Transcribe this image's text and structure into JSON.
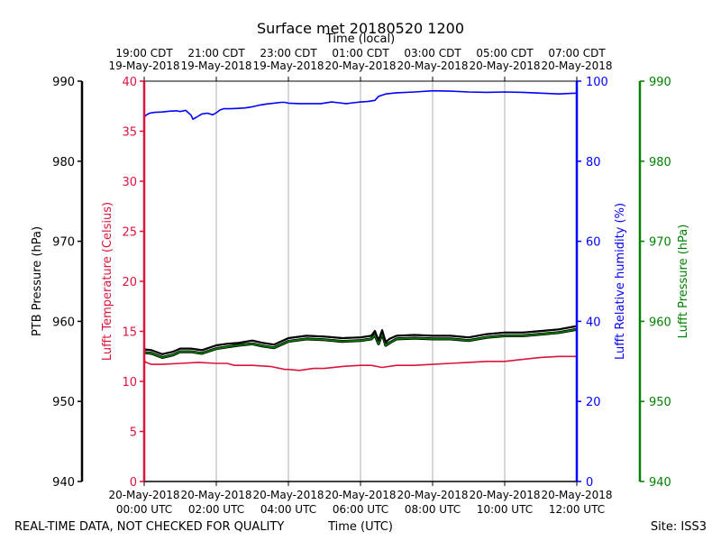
{
  "chart_data": {
    "type": "line",
    "title": "Surface met 20180520 1200",
    "top_axis_label": "Time (local)",
    "bottom_axis_label": "Time (UTC)",
    "footer_left": "REAL-TIME DATA, NOT CHECKED FOR QUALITY",
    "footer_right": "Site: ISS3",
    "x_range_hours": [
      0,
      12
    ],
    "grid": true,
    "bottom_ticks": [
      {
        "hour": 0,
        "line1": "20-May-2018",
        "line2": "00:00 UTC"
      },
      {
        "hour": 2,
        "line1": "20-May-2018",
        "line2": "02:00 UTC"
      },
      {
        "hour": 4,
        "line1": "20-May-2018",
        "line2": "04:00 UTC"
      },
      {
        "hour": 6,
        "line1": "20-May-2018",
        "line2": "06:00 UTC"
      },
      {
        "hour": 8,
        "line1": "20-May-2018",
        "line2": "08:00 UTC"
      },
      {
        "hour": 10,
        "line1": "20-May-2018",
        "line2": "10:00 UTC"
      },
      {
        "hour": 12,
        "line1": "20-May-2018",
        "line2": "12:00 UTC"
      }
    ],
    "top_ticks": [
      {
        "hour": 0,
        "line1": "19:00 CDT",
        "line2": "19-May-2018"
      },
      {
        "hour": 2,
        "line1": "21:00 CDT",
        "line2": "19-May-2018"
      },
      {
        "hour": 4,
        "line1": "23:00 CDT",
        "line2": "19-May-2018"
      },
      {
        "hour": 6,
        "line1": "01:00 CDT",
        "line2": "20-May-2018"
      },
      {
        "hour": 8,
        "line1": "03:00 CDT",
        "line2": "20-May-2018"
      },
      {
        "hour": 10,
        "line1": "05:00 CDT",
        "line2": "20-May-2018"
      },
      {
        "hour": 12,
        "line1": "07:00 CDT",
        "line2": "20-May-2018"
      }
    ],
    "axes": {
      "ptb_pressure": {
        "label": "PTB Pressure (hPa)",
        "range": [
          940,
          990
        ],
        "ticks": [
          940,
          950,
          960,
          970,
          980,
          990
        ],
        "color": "#000000"
      },
      "temperature": {
        "label": "Lufft Temperature (Celsius)",
        "range": [
          0,
          40
        ],
        "ticks": [
          0,
          5,
          10,
          15,
          20,
          25,
          30,
          35,
          40
        ],
        "color": "#dc143c"
      },
      "humidity": {
        "label": "Lufft Relative humidity (%)",
        "range": [
          0,
          100
        ],
        "ticks": [
          0,
          20,
          40,
          60,
          80,
          100
        ],
        "color": "#0000ff"
      },
      "lufft_pressure": {
        "label": "Lufft Pressure (hPa)",
        "range": [
          940,
          990
        ],
        "ticks": [
          940,
          950,
          960,
          970,
          980,
          990
        ],
        "color": "#008000"
      }
    },
    "series": [
      {
        "name": "Lufft Relative humidity",
        "axis": "humidity",
        "color": "#0000ff",
        "x": [
          0,
          0.05,
          0.15,
          0.3,
          0.5,
          0.7,
          0.9,
          1.0,
          1.15,
          1.3,
          1.35,
          1.45,
          1.6,
          1.75,
          1.9,
          2.0,
          2.1,
          2.2,
          2.4,
          2.6,
          2.8,
          3.0,
          3.2,
          3.4,
          3.6,
          3.8,
          3.9,
          4.0,
          4.3,
          4.6,
          4.9,
          5.2,
          5.4,
          5.6,
          5.8,
          6.0,
          6.2,
          6.4,
          6.5,
          6.7,
          7.0,
          7.5,
          8.0,
          8.5,
          9.0,
          9.5,
          10.0,
          10.5,
          11.0,
          11.5,
          12.0
        ],
        "values": [
          91.0,
          91.5,
          92.0,
          92.2,
          92.3,
          92.5,
          92.6,
          92.4,
          92.7,
          91.5,
          90.5,
          91.0,
          91.8,
          92.0,
          91.6,
          92.1,
          92.8,
          93.1,
          93.1,
          93.2,
          93.3,
          93.6,
          94.0,
          94.3,
          94.5,
          94.7,
          94.7,
          94.5,
          94.4,
          94.4,
          94.4,
          94.8,
          94.6,
          94.4,
          94.6,
          94.8,
          94.9,
          95.2,
          96.2,
          96.8,
          97.1,
          97.3,
          97.6,
          97.5,
          97.3,
          97.2,
          97.3,
          97.2,
          97.0,
          96.8,
          97.0
        ]
      },
      {
        "name": "Lufft Temperature",
        "axis": "temperature",
        "color": "#dc143c",
        "x": [
          0,
          0.05,
          0.2,
          0.5,
          1.0,
          1.5,
          2.0,
          2.3,
          2.5,
          3.0,
          3.5,
          3.9,
          4.0,
          4.3,
          4.7,
          5.0,
          5.5,
          6.0,
          6.3,
          6.6,
          7.0,
          7.5,
          8.0,
          8.5,
          9.0,
          9.5,
          10.0,
          10.5,
          11.0,
          11.5,
          12.0
        ],
        "values": [
          12.1,
          11.9,
          11.7,
          11.7,
          11.8,
          11.9,
          11.8,
          11.8,
          11.6,
          11.6,
          11.5,
          11.2,
          11.2,
          11.1,
          11.3,
          11.3,
          11.5,
          11.6,
          11.6,
          11.4,
          11.6,
          11.6,
          11.7,
          11.8,
          11.9,
          12.0,
          12.0,
          12.2,
          12.4,
          12.5,
          12.5
        ]
      },
      {
        "name": "Lufft Pressure",
        "axis": "lufft_pressure",
        "color": "#008000",
        "x": [
          0,
          0.2,
          0.5,
          0.8,
          1.0,
          1.3,
          1.6,
          2.0,
          2.3,
          2.6,
          3.0,
          3.3,
          3.6,
          4.0,
          4.5,
          5.0,
          5.5,
          6.0,
          6.3,
          6.4,
          6.5,
          6.6,
          6.7,
          6.8,
          7.0,
          7.5,
          8.0,
          8.5,
          9.0,
          9.5,
          10.0,
          10.5,
          11.0,
          11.5,
          12.0
        ],
        "values": [
          956.1,
          956.0,
          955.5,
          955.8,
          956.2,
          956.2,
          956.0,
          956.6,
          956.8,
          957.0,
          957.2,
          956.9,
          956.7,
          957.5,
          957.8,
          957.7,
          957.5,
          957.6,
          957.8,
          958.3,
          957.2,
          958.5,
          957.0,
          957.3,
          957.8,
          957.9,
          957.8,
          957.8,
          957.6,
          958.0,
          958.2,
          958.2,
          958.4,
          958.6,
          959.0
        ]
      },
      {
        "name": "PTB Pressure",
        "axis": "ptb_pressure",
        "color": "#000000",
        "x": [
          0,
          0.2,
          0.5,
          0.8,
          1.0,
          1.3,
          1.6,
          2.0,
          2.3,
          2.6,
          3.0,
          3.3,
          3.6,
          4.0,
          4.5,
          5.0,
          5.5,
          6.0,
          6.3,
          6.4,
          6.5,
          6.6,
          6.7,
          6.8,
          7.0,
          7.5,
          8.0,
          8.5,
          9.0,
          9.5,
          10.0,
          10.5,
          11.0,
          11.5,
          12.0
        ],
        "values": [
          956.5,
          956.4,
          955.9,
          956.2,
          956.6,
          956.6,
          956.4,
          957.0,
          957.2,
          957.3,
          957.6,
          957.3,
          957.1,
          957.9,
          958.2,
          958.1,
          957.9,
          958.0,
          958.2,
          958.8,
          957.6,
          958.9,
          957.4,
          957.8,
          958.2,
          958.3,
          958.2,
          958.2,
          958.0,
          958.4,
          958.6,
          958.6,
          958.8,
          959.0,
          959.4
        ]
      }
    ]
  }
}
